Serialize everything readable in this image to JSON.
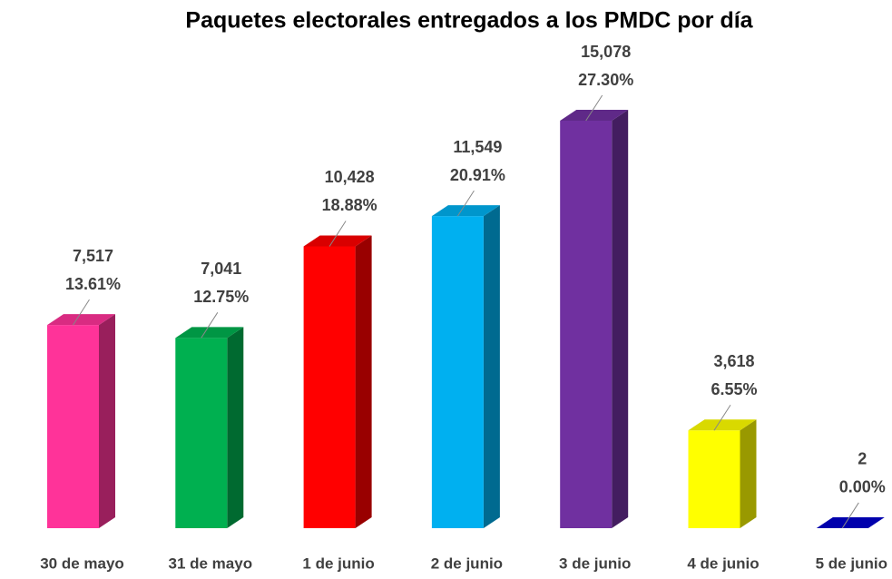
{
  "chart_data": {
    "type": "bar3d",
    "title": "Paquetes electorales entregados a los PMDC por día",
    "categories": [
      "30 de mayo",
      "31 de mayo",
      "1 de junio",
      "2 de junio",
      "3 de junio",
      "4 de junio",
      "5 de junio"
    ],
    "values": [
      7517,
      7041,
      10428,
      11549,
      15078,
      3618,
      2
    ],
    "value_labels": [
      "7,517",
      "7,041",
      "10,428",
      "11,549",
      "15,078",
      "3,618",
      "2"
    ],
    "shares": [
      13.61,
      12.75,
      18.88,
      20.91,
      27.3,
      6.55,
      0.0
    ],
    "share_labels": [
      "13.61%",
      "12.75%",
      "18.88%",
      "20.91%",
      "27.30%",
      "6.55%",
      "0.00%"
    ],
    "colors": [
      "#ff3399",
      "#00b050",
      "#ff0000",
      "#00b0f0",
      "#7030a0",
      "#ffff00",
      "#0000cc"
    ]
  }
}
